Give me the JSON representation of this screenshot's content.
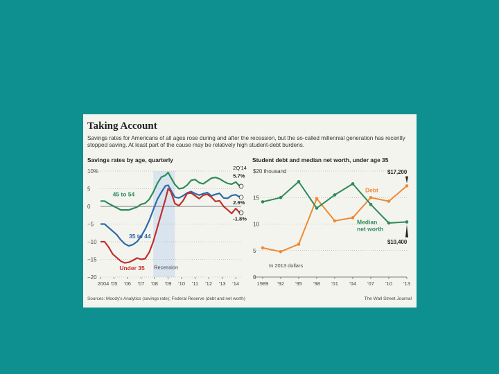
{
  "card": {
    "headline": "Taking Account",
    "dek": "Savings rates for Americans of all ages rose during and after the recession, but the so-called millennial generation has recently stopped saving. At least part of the cause may be relatively high student-debt burdens.",
    "source": "Sources: Moody's Analytics (savings rate); Federal Reserve (debt and net worth)",
    "credit": "The Wall Street Journal"
  },
  "colors": {
    "background": "#0f9090",
    "card": "#f4f4ef",
    "green": "#2e8b57",
    "blue": "#2e6aa8",
    "red": "#c0302c",
    "orange": "#ee8a33",
    "recession": "#d9e4ee"
  },
  "chart_data": [
    {
      "type": "line",
      "title": "Savings rates by age, quarterly",
      "ylabel": "%",
      "ylim": [
        -20,
        10
      ],
      "yticks": [
        10,
        5,
        0,
        -5,
        -10,
        -15,
        -20
      ],
      "ytick_labels": [
        "10%",
        "5",
        "0",
        "−5",
        "−10",
        "−15",
        "−20"
      ],
      "xlim": [
        2004,
        2014.4
      ],
      "xticks": [
        2004,
        2005,
        2006,
        2007,
        2008,
        2009,
        2010,
        2011,
        2012,
        2013,
        2014
      ],
      "xtick_labels": [
        "2004",
        "'05",
        "'06",
        "'07",
        "'08",
        "'09",
        "'10",
        "'11",
        "'12",
        "'13",
        "'14"
      ],
      "recession": {
        "start": 2007.9,
        "end": 2009.5,
        "label": "Recession"
      },
      "period_label": "2Q'14",
      "series": [
        {
          "name": "45 to 54",
          "color_key": "green",
          "end_label": "5.7%",
          "x": [
            2004,
            2004.3,
            2004.6,
            2004.9,
            2005.2,
            2005.5,
            2005.8,
            2006.1,
            2006.4,
            2006.7,
            2007.0,
            2007.3,
            2007.6,
            2007.9,
            2008.2,
            2008.5,
            2008.8,
            2009.0,
            2009.2,
            2009.5,
            2009.8,
            2010.1,
            2010.4,
            2010.7,
            2011.0,
            2011.3,
            2011.6,
            2011.9,
            2012.2,
            2012.5,
            2012.8,
            2013.1,
            2013.4,
            2013.7,
            2014.0,
            2014.3
          ],
          "y": [
            1.5,
            1.5,
            0.8,
            0.2,
            -0.4,
            -1.0,
            -1.0,
            -1.0,
            -0.6,
            -0.2,
            0.6,
            0.9,
            2.0,
            4.0,
            6.5,
            8.3,
            8.8,
            9.6,
            8.2,
            6.2,
            5.0,
            5.2,
            6.0,
            7.4,
            7.6,
            6.7,
            6.4,
            7.2,
            8.0,
            8.2,
            7.8,
            7.1,
            6.5,
            6.3,
            6.9,
            5.7
          ]
        },
        {
          "name": "35 to 44",
          "color_key": "blue",
          "end_label": "2.6%",
          "x": [
            2004,
            2004.3,
            2004.6,
            2004.9,
            2005.2,
            2005.5,
            2005.8,
            2006.1,
            2006.4,
            2006.7,
            2007.0,
            2007.3,
            2007.6,
            2007.9,
            2008.2,
            2008.5,
            2008.8,
            2009.0,
            2009.2,
            2009.5,
            2009.8,
            2010.1,
            2010.4,
            2010.7,
            2011.0,
            2011.3,
            2011.6,
            2011.9,
            2012.2,
            2012.5,
            2012.8,
            2013.1,
            2013.4,
            2013.7,
            2014.0,
            2014.3
          ],
          "y": [
            -5.0,
            -5.0,
            -6.0,
            -7.0,
            -8.0,
            -9.5,
            -10.6,
            -11.2,
            -10.8,
            -10.0,
            -8.5,
            -6.5,
            -4.0,
            -1.0,
            2.0,
            4.0,
            5.8,
            6.0,
            4.6,
            2.6,
            2.4,
            3.0,
            3.8,
            4.2,
            3.6,
            3.2,
            3.6,
            3.9,
            3.0,
            3.4,
            3.7,
            2.4,
            2.3,
            3.1,
            3.3,
            2.6
          ]
        },
        {
          "name": "Under 35",
          "color_key": "red",
          "end_label": "-1.8%",
          "x": [
            2004,
            2004.3,
            2004.6,
            2004.9,
            2005.2,
            2005.5,
            2005.8,
            2006.1,
            2006.4,
            2006.7,
            2007.0,
            2007.3,
            2007.6,
            2007.9,
            2008.2,
            2008.5,
            2008.8,
            2009.0,
            2009.2,
            2009.5,
            2009.8,
            2010.1,
            2010.4,
            2010.7,
            2011.0,
            2011.3,
            2011.6,
            2011.9,
            2012.2,
            2012.5,
            2012.8,
            2013.1,
            2013.4,
            2013.7,
            2014.0,
            2014.3
          ],
          "y": [
            -10.0,
            -10.0,
            -11.5,
            -13.5,
            -14.5,
            -15.5,
            -16.0,
            -15.8,
            -15.3,
            -14.6,
            -15.0,
            -14.8,
            -13.0,
            -10.0,
            -6.0,
            -2.0,
            2.0,
            5.0,
            4.2,
            0.8,
            0.2,
            1.6,
            3.6,
            3.8,
            3.0,
            2.2,
            3.2,
            3.4,
            2.6,
            1.4,
            1.6,
            0.0,
            -1.0,
            -2.0,
            -0.6,
            -1.8
          ]
        }
      ]
    },
    {
      "type": "line",
      "title": "Student debt and median net worth, under age 35",
      "units_note": "In 2013 dollars",
      "ylim": [
        0,
        20
      ],
      "yticks": [
        20,
        15,
        10,
        5,
        0
      ],
      "ytick_labels": [
        "$20 thousand",
        "15",
        "10",
        "5",
        "0"
      ],
      "x": [
        1989,
        1992,
        1995,
        1998,
        2001,
        2004,
        2007,
        2010,
        2013
      ],
      "xtick_labels": [
        "1989",
        "'92",
        "'95",
        "'98",
        "'01",
        "'04",
        "'07",
        "'10",
        "'13"
      ],
      "series": [
        {
          "name": "Debt",
          "color_key": "orange",
          "end_label": "$17,200",
          "values": [
            5.5,
            4.8,
            6.2,
            14.8,
            10.6,
            11.2,
            15.0,
            14.3,
            17.2
          ]
        },
        {
          "name": "Median net worth",
          "color_key": "green",
          "end_label": "$10,400",
          "values": [
            14.2,
            15.0,
            18.0,
            13.0,
            15.5,
            17.6,
            13.7,
            10.2,
            10.4
          ]
        }
      ]
    }
  ]
}
